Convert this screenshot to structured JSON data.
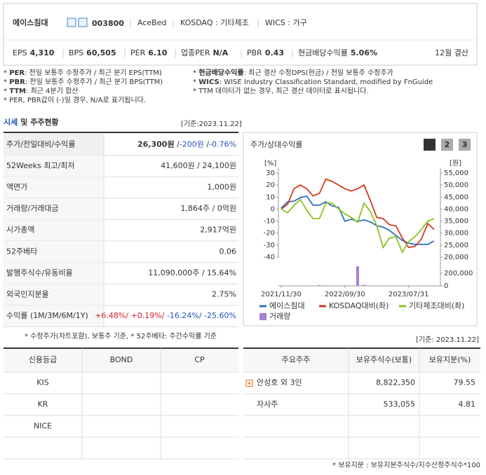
{
  "header": {
    "name": "에이스침대",
    "code": "003800",
    "info": [
      "AceBed",
      "KOSDAQ : 기타제조",
      "WICS : 가구"
    ],
    "metrics": [
      {
        "label": "EPS",
        "value": "4,310"
      },
      {
        "label": "BPS",
        "value": "60,505"
      },
      {
        "label": "PER",
        "value": "6.10"
      },
      {
        "label": "업종PER",
        "value": "N/A"
      },
      {
        "label": "PBR",
        "value": "0.43"
      },
      {
        "label": "현금배당수익률",
        "value": "5.06%"
      }
    ],
    "fiscal": "12월 결산"
  },
  "notes": {
    "left": [
      [
        {
          "t": "* "
        },
        {
          "t": "PER",
          "bold": true
        },
        {
          "t": ": 전일 보통주 수정주가 / 최근 분기 EPS(TTM)"
        }
      ],
      [
        {
          "t": "* "
        },
        {
          "t": "PBR",
          "bold": true
        },
        {
          "t": ": 전일 보통주 수정주가 / 최근 분기 BPS(TTM)"
        }
      ],
      [
        {
          "t": "* "
        },
        {
          "t": "TTM",
          "bold": true
        },
        {
          "t": ": 최근 4분기 합산"
        }
      ],
      [
        {
          "t": "* PER, PBR값이 (-)일 경우, N/A로 표기됩니다."
        }
      ]
    ],
    "right": [
      [
        {
          "t": "* "
        },
        {
          "t": "현금배당수익률",
          "bold": true
        },
        {
          "t": ": 최근 결산 수정DPS(현금) / 전일 보통주 수정주가"
        }
      ],
      [
        {
          "t": "* "
        },
        {
          "t": "WICS",
          "bold": true
        },
        {
          "t": ": WISE Industry Classification Standard, modified by FnGuide"
        }
      ],
      [
        {
          "t": "* TTM 데이터가 없는 경우, 최근 결산 데이터로 표시됩니다."
        }
      ]
    ]
  },
  "section": {
    "title": "시세",
    "title_rest": "및 주주현황",
    "date": "[기준:2023.11.22]"
  },
  "price_table": {
    "rows": [
      {
        "label": "주가/전일대비/수익률",
        "value": [
          {
            "t": "26,300원",
            "bold": true
          },
          {
            "t": " /"
          },
          {
            "t": "-200원",
            "color": "#2255bb"
          },
          {
            "t": " /"
          },
          {
            "t": "-0.76%",
            "color": "#2255bb"
          }
        ]
      },
      {
        "label": "52Weeks 최고/최저",
        "value": [
          {
            "t": "41,600원 / 24,100원"
          }
        ]
      },
      {
        "label": "액면가",
        "value": [
          {
            "t": "1,000원"
          }
        ]
      },
      {
        "label": "거래량/거래대금",
        "value": [
          {
            "t": "1,864주 / 0억원"
          }
        ]
      },
      {
        "label": "시가총액",
        "value": [
          {
            "t": "2,917억원"
          }
        ]
      },
      {
        "label": "52주베타",
        "value": [
          {
            "t": "0.06"
          }
        ]
      },
      {
        "label": "발행주식수/유동비율",
        "value": [
          {
            "t": "11,090,000주 / 15.64%"
          }
        ]
      },
      {
        "label": "외국인지분율",
        "value": [
          {
            "t": "2.75%"
          }
        ]
      },
      {
        "label": "수익률 (1M/3M/6M/1Y)",
        "value": [
          {
            "t": "+6.48%/ ",
            "color": "#d0202a"
          },
          {
            "t": "+0.19%/ ",
            "color": "#d0202a"
          },
          {
            "t": "-16.24%/ ",
            "color": "#2255bb"
          },
          {
            "t": "-25.60%",
            "color": "#2255bb"
          }
        ]
      }
    ],
    "note": "* 수정주가(차트포함), 보통주 기준, * 52주베타: 주간수익률 기준"
  },
  "chart_data": {
    "type": "line",
    "title": "주가/상대수익률",
    "tabs": [
      "1",
      "2",
      "3"
    ],
    "ylabel": "[%]",
    "y2label": "[원]",
    "categories": [
      "2021/11/30",
      null,
      null,
      null,
      null,
      null,
      null,
      null,
      null,
      null,
      "2022/09/30",
      null,
      null,
      null,
      null,
      null,
      null,
      null,
      null,
      null,
      "2023/07/31",
      null,
      null,
      null,
      null
    ],
    "ylim": [
      -40,
      30
    ],
    "yticks": [
      30,
      20,
      10,
      0,
      -10,
      -20,
      -30,
      -40
    ],
    "y2lim": [
      20000,
      55000
    ],
    "y2ticks": [
      {
        "value": 55000,
        "label": "55,000"
      },
      {
        "value": 50000,
        "label": "50,000"
      },
      {
        "value": 45000,
        "label": "45,000"
      },
      {
        "value": 40000,
        "label": "40,000"
      },
      {
        "value": 35000,
        "label": "35,000"
      },
      {
        "value": 30000,
        "label": "30,000"
      },
      {
        "value": 25000,
        "label": "25,000"
      },
      {
        "value": 20000,
        "label": "20,000"
      }
    ],
    "y3lim": [
      0,
      400000
    ],
    "y3ticks": [
      {
        "value": 200000,
        "label": "200,000"
      },
      0
    ],
    "series": [
      {
        "name": "에이스침대",
        "color": "#2f6fc0",
        "axis": "y2",
        "values": [
          40400,
          43000,
          43300,
          44800,
          45400,
          41600,
          41600,
          43000,
          41300,
          40700,
          34900,
          35800,
          34900,
          35500,
          34600,
          33100,
          32500,
          31100,
          29000,
          27000,
          25800,
          25300,
          25300,
          25300,
          26700
        ]
      },
      {
        "name": "KOSDAQ대비(좌)",
        "color": "#d23a1e",
        "values": [
          0,
          4,
          17,
          20,
          17,
          11,
          13,
          25,
          23,
          20,
          17,
          15,
          17,
          20,
          7,
          -7,
          -8,
          -13,
          -14,
          -24,
          -32,
          -31,
          -25,
          -12,
          -17
        ]
      },
      {
        "name": "기타제조대비(좌)",
        "color": "#8dc21f",
        "values": [
          0,
          -3,
          3,
          8,
          -1,
          -8,
          -8,
          5,
          5,
          0,
          -4,
          -7,
          -11,
          5,
          -2,
          -14,
          -32,
          -24,
          -23,
          -36,
          -27,
          -23,
          -17,
          -10,
          -8
        ]
      },
      {
        "name": "거래량",
        "color": "#a97fd0",
        "type": "bar",
        "axis": "y3",
        "values": [
          3000,
          3000,
          3000,
          3000,
          3000,
          3000,
          12000,
          3000,
          3000,
          3000,
          3000,
          3000,
          310000,
          15000,
          3000,
          3000,
          3000,
          3000,
          3000,
          3000,
          3000,
          3000,
          3000,
          3000,
          3000
        ]
      }
    ]
  },
  "credit_table": {
    "header": [
      "신용등급",
      "BOND",
      "CP"
    ],
    "rows": [
      [
        "KIS"
      ],
      [
        "KR"
      ],
      [
        "NICE"
      ]
    ]
  },
  "holders": {
    "date": "[기준: 2023.11.22]",
    "header": [
      "주요주주",
      "보유주식수(보통)",
      "보유지분(%)"
    ],
    "rows": [
      [
        "안성호 외 3인",
        "8,822,350",
        "79.55"
      ],
      [
        "자사주",
        "533,055",
        "4.81"
      ]
    ],
    "note": "* 보유지분 : 보유지분주식수/지수산정주식수*100"
  }
}
